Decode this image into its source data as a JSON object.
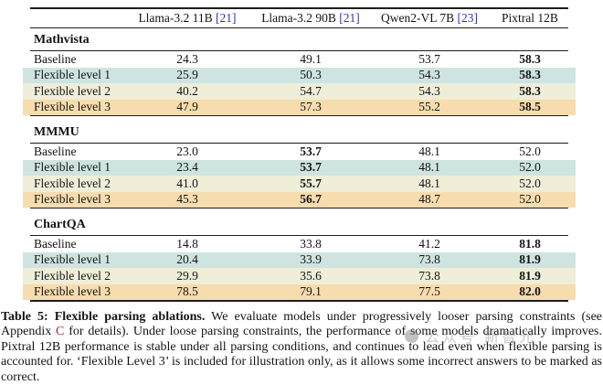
{
  "header": {
    "columns": [
      {
        "name": "Llama-3.2 11B",
        "cite": "[21]"
      },
      {
        "name": "Llama-3.2 90B",
        "cite": "[21]"
      },
      {
        "name": "Qwen2-VL 7B",
        "cite": "[23]"
      },
      {
        "name": "Pixtral 12B"
      }
    ]
  },
  "table": {
    "sections": [
      {
        "name": "Mathvista",
        "bold_column": "Pixtral 12B",
        "rows": [
          {
            "label": "Baseline",
            "values": [
              "24.3",
              "49.1",
              "53.7",
              "58.3"
            ]
          },
          {
            "label": "Flexible level 1",
            "values": [
              "25.9",
              "50.3",
              "54.3",
              "58.3"
            ]
          },
          {
            "label": "Flexible level 2",
            "values": [
              "40.2",
              "54.7",
              "54.3",
              "58.3"
            ]
          },
          {
            "label": "Flexible level 3",
            "values": [
              "47.9",
              "57.3",
              "55.2",
              "58.5"
            ]
          }
        ]
      },
      {
        "name": "MMMU",
        "bold_column": "Llama-3.2 90B",
        "rows": [
          {
            "label": "Baseline",
            "values": [
              "23.0",
              "53.7",
              "48.1",
              "52.0"
            ]
          },
          {
            "label": "Flexible level 1",
            "values": [
              "23.4",
              "53.7",
              "48.1",
              "52.0"
            ]
          },
          {
            "label": "Flexible level 2",
            "values": [
              "41.0",
              "55.7",
              "48.1",
              "52.0"
            ]
          },
          {
            "label": "Flexible level 3",
            "values": [
              "45.3",
              "56.7",
              "48.7",
              "52.0"
            ]
          }
        ]
      },
      {
        "name": "ChartQA",
        "bold_column": "Pixtral 12B",
        "rows": [
          {
            "label": "Baseline",
            "values": [
              "14.8",
              "33.8",
              "41.2",
              "81.8"
            ]
          },
          {
            "label": "Flexible level 1",
            "values": [
              "20.4",
              "33.9",
              "73.8",
              "81.9"
            ]
          },
          {
            "label": "Flexible level 2",
            "values": [
              "29.9",
              "35.6",
              "73.8",
              "81.9"
            ]
          },
          {
            "label": "Flexible level 3",
            "values": [
              "78.5",
              "79.1",
              "77.5",
              "82.0"
            ]
          }
        ]
      }
    ]
  },
  "caption": {
    "title": "Table 5: Flexible parsing ablations.",
    "part1": " We evaluate models under progressively looser parsing constraints (see Appendix ",
    "appendix_ref": "C",
    "part2": " for details). Under loose parsing constraints, the performance of some models dramatically improves. Pixtral 12B performance is stable under all parsing conditions, and continues to lead even when flexible parsing is accounted for. ‘Flexible Level 3’ is included for illustration only, as it allows some incorrect answers to be marked as correct."
  },
  "watermark": {
    "text": "公众号 新智元"
  },
  "colors": {
    "row_level1": "#cee4e1",
    "row_level2": "#eeeed9",
    "row_level3": "#f7dcae",
    "citation_blue": "#2e35bd",
    "appendix_ref_red": "#b22222"
  }
}
